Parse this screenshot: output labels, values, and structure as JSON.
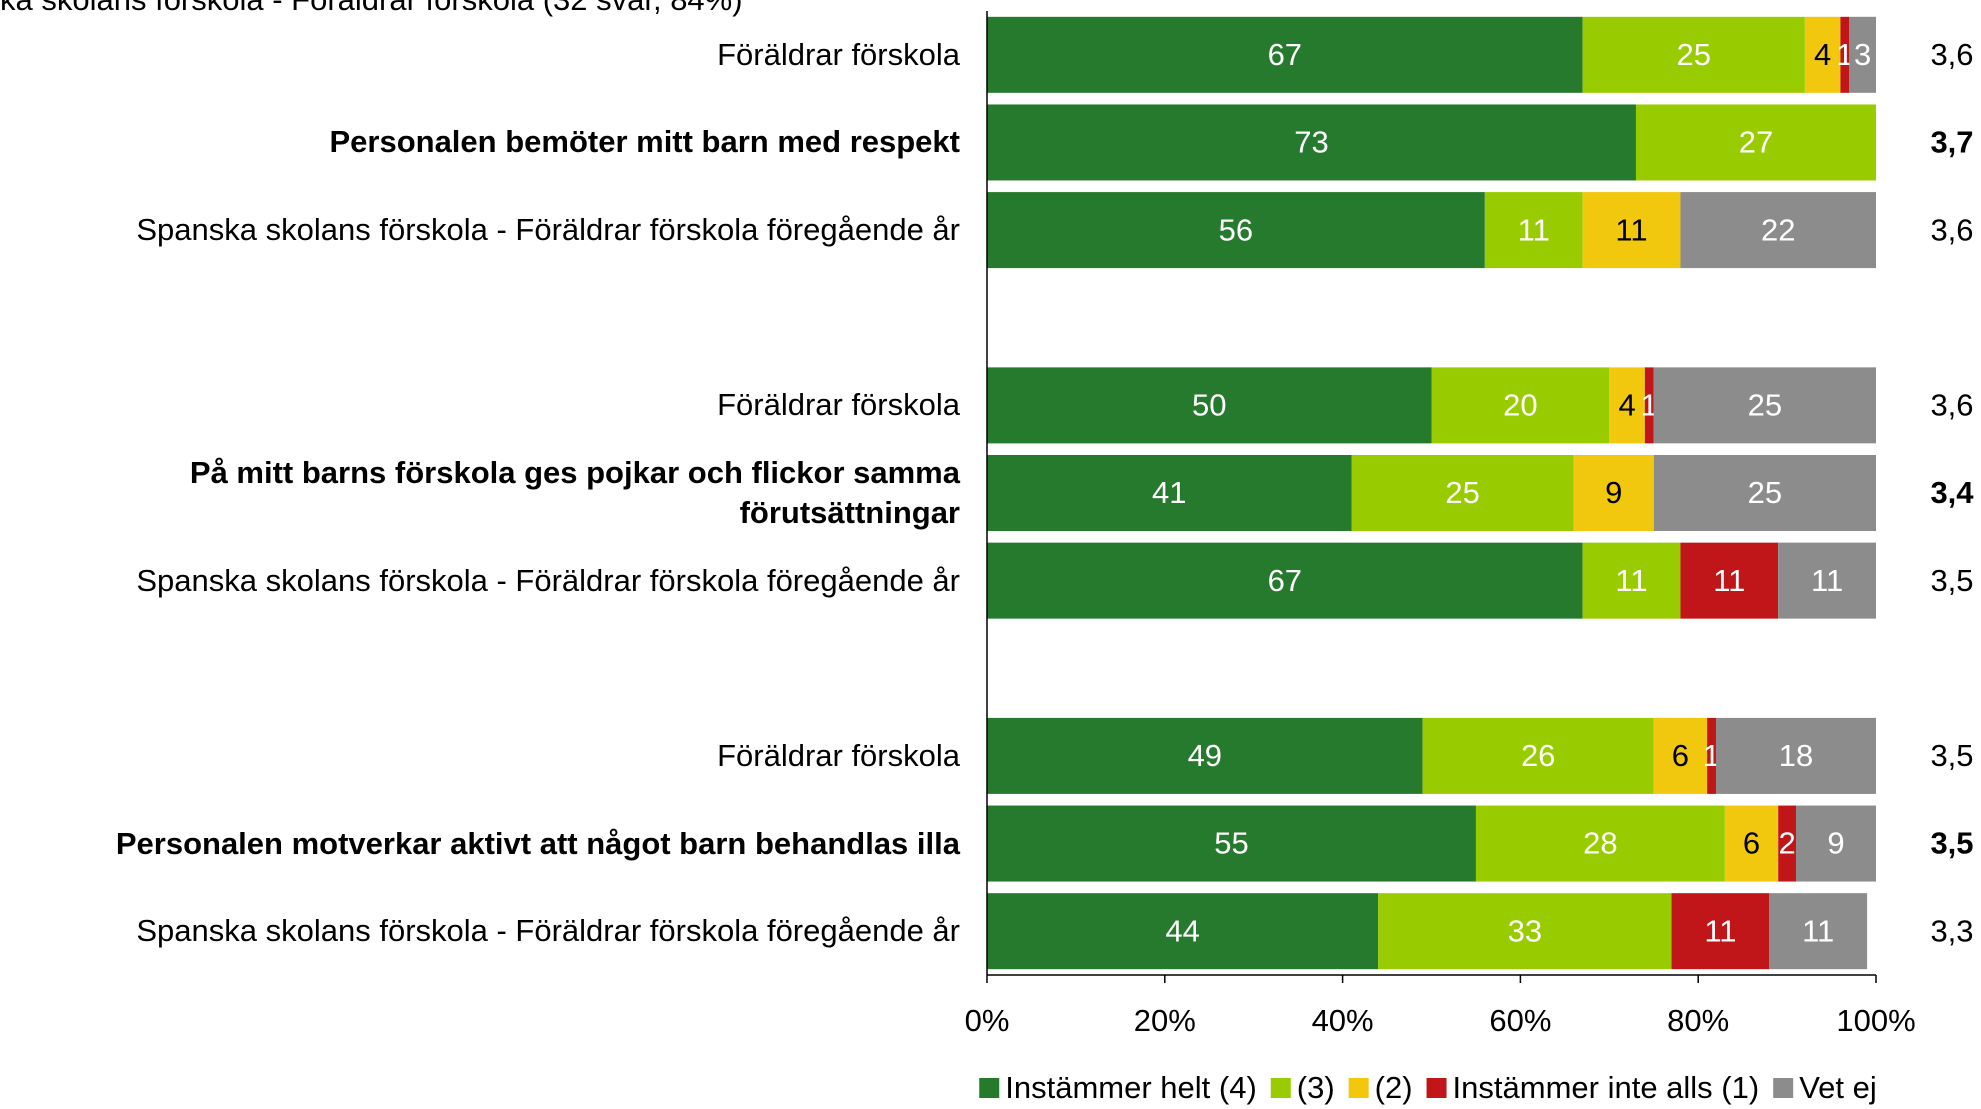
{
  "chart_data": {
    "type": "stacked-barh",
    "subtitle": "ka skolans förskola - Föräldrar förskola (32 svar, 84%)",
    "categories": [
      "Föräldrar förskola",
      "Personalen bemöter mitt barn med respekt",
      "Spanska skolans förskola - Föräldrar förskola föregående år",
      "Föräldrar förskola",
      "På mitt barns förskola ges pojkar och flickor samma förutsättningar",
      "Spanska skolans förskola - Föräldrar förskola föregående år",
      "Föräldrar förskola",
      "Personalen motverkar aktivt att något barn behandlas illa",
      "Spanska skolans förskola - Föräldrar förskola föregående år"
    ],
    "bold": [
      false,
      true,
      false,
      false,
      true,
      false,
      false,
      true,
      false
    ],
    "mean_labels": [
      "3,6",
      "3,7",
      "3,6",
      "3,6",
      "3,4",
      "3,5",
      "3,5",
      "3,5",
      "3,3"
    ],
    "series": [
      {
        "name": "Instämmer helt (4)",
        "color": "#267a2e",
        "label_color": "#ffffff",
        "values": [
          67,
          73,
          56,
          50,
          41,
          67,
          49,
          55,
          44
        ]
      },
      {
        "name": "(3)",
        "color": "#99cc00",
        "label_color": "#ffffff",
        "values": [
          25,
          27,
          11,
          20,
          25,
          11,
          26,
          28,
          33
        ]
      },
      {
        "name": "(2)",
        "color": "#f2c80f",
        "label_color": "#000000",
        "values": [
          4,
          null,
          11,
          4,
          9,
          null,
          6,
          6,
          null
        ]
      },
      {
        "name": "Instämmer inte alls (1)",
        "color": "#c0161a",
        "label_color": "#ffffff",
        "values": [
          1,
          null,
          null,
          1,
          null,
          11,
          1,
          2,
          11
        ]
      },
      {
        "name": "Vet ej",
        "color": "#8c8c8c",
        "label_color": "#ffffff",
        "values": [
          3,
          null,
          22,
          25,
          25,
          11,
          18,
          9,
          11
        ]
      }
    ],
    "xlim": [
      0,
      100
    ],
    "xticks": [
      {
        "value": 0,
        "label": "0%"
      },
      {
        "value": 20,
        "label": "20%"
      },
      {
        "value": 40,
        "label": "40%"
      },
      {
        "value": 60,
        "label": "60%"
      },
      {
        "value": 80,
        "label": "80%"
      },
      {
        "value": 100,
        "label": "100%"
      }
    ]
  }
}
